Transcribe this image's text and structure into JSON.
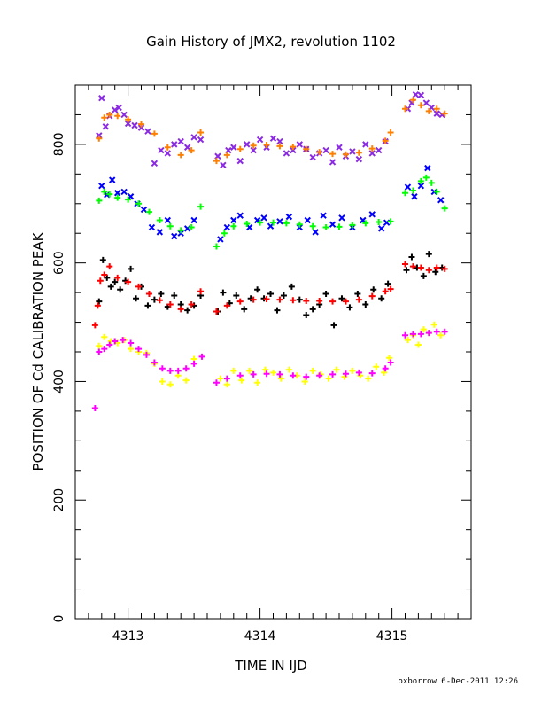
{
  "chart_data": {
    "type": "scatter",
    "title": "Gain History of JMX2, revolution 1102",
    "xlabel": "TIME IN IJD",
    "ylabel": "POSITION OF Cd CALIBRATION PEAK",
    "xlim": [
      4312.6,
      4315.6
    ],
    "ylim": [
      0,
      900
    ],
    "xticks": [
      4313,
      4314,
      4315
    ],
    "yticks": [
      0,
      200,
      400,
      600,
      800
    ],
    "grid": false,
    "series": [
      {
        "color": "#8a2be2",
        "marker": "x",
        "x": [
          4312.78,
          4312.8,
          4312.83,
          4312.86,
          4312.9,
          4312.93,
          4312.97,
          4313.0,
          4313.05,
          4313.1,
          4313.15,
          4313.2,
          4313.25,
          4313.3,
          4313.35,
          4313.4,
          4313.45,
          4313.5,
          4313.55,
          4313.68,
          4313.72,
          4313.76,
          4313.8,
          4313.85,
          4313.9,
          4313.95,
          4314.0,
          4314.05,
          4314.1,
          4314.15,
          4314.2,
          4314.25,
          4314.3,
          4314.35,
          4314.4,
          4314.45,
          4314.5,
          4314.55,
          4314.6,
          4314.65,
          4314.7,
          4314.75,
          4314.8,
          4314.85,
          4314.9,
          4314.95,
          4315.12,
          4315.15,
          4315.18,
          4315.22,
          4315.26,
          4315.3,
          4315.34,
          4315.38
        ],
        "y": [
          815,
          878,
          830,
          848,
          858,
          862,
          850,
          835,
          832,
          828,
          822,
          768,
          790,
          785,
          800,
          805,
          795,
          812,
          808,
          780,
          765,
          790,
          795,
          772,
          800,
          790,
          808,
          795,
          810,
          805,
          785,
          790,
          800,
          792,
          778,
          785,
          790,
          770,
          795,
          780,
          788,
          775,
          800,
          785,
          790,
          805,
          860,
          870,
          884,
          883,
          870,
          862,
          852,
          850
        ]
      },
      {
        "color": "#ff8000",
        "marker": "+",
        "x": [
          4312.78,
          4312.82,
          4312.86,
          4312.92,
          4313.0,
          4313.1,
          4313.2,
          4313.3,
          4313.4,
          4313.48,
          4313.55,
          4313.67,
          4313.75,
          4313.85,
          4313.95,
          4314.05,
          4314.15,
          4314.25,
          4314.35,
          4314.45,
          4314.55,
          4314.65,
          4314.75,
          4314.85,
          4314.95,
          4314.99,
          4315.1,
          4315.16,
          4315.22,
          4315.28,
          4315.34,
          4315.4
        ],
        "y": [
          810,
          845,
          850,
          848,
          842,
          834,
          818,
          795,
          782,
          790,
          820,
          772,
          782,
          792,
          798,
          799,
          797,
          796,
          792,
          787,
          784,
          783,
          786,
          793,
          806,
          820,
          860,
          875,
          866,
          856,
          860,
          852
        ]
      },
      {
        "color": "#0000ff",
        "marker": "x",
        "x": [
          4312.8,
          4312.84,
          4312.88,
          4312.92,
          4312.97,
          4313.02,
          4313.07,
          4313.12,
          4313.18,
          4313.24,
          4313.3,
          4313.35,
          4313.4,
          4313.45,
          4313.5,
          4313.7,
          4313.75,
          4313.8,
          4313.85,
          4313.92,
          4313.98,
          4314.03,
          4314.08,
          4314.15,
          4314.22,
          4314.3,
          4314.36,
          4314.42,
          4314.48,
          4314.55,
          4314.62,
          4314.7,
          4314.78,
          4314.85,
          4314.92,
          4314.96,
          4315.12,
          4315.17,
          4315.22,
          4315.27,
          4315.32,
          4315.37
        ],
        "y": [
          730,
          715,
          740,
          718,
          720,
          712,
          700,
          690,
          660,
          652,
          672,
          645,
          650,
          658,
          672,
          640,
          660,
          672,
          680,
          660,
          672,
          676,
          662,
          670,
          678,
          660,
          672,
          652,
          680,
          665,
          676,
          660,
          672,
          682,
          658,
          668,
          728,
          712,
          730,
          760,
          720,
          706
        ]
      },
      {
        "color": "#00ff00",
        "marker": "+",
        "x": [
          4312.78,
          4312.82,
          4312.86,
          4312.92,
          4313.0,
          4313.08,
          4313.16,
          4313.24,
          4313.32,
          4313.4,
          4313.48,
          4313.55,
          4313.67,
          4313.73,
          4313.8,
          4313.9,
          4314.0,
          4314.1,
          4314.2,
          4314.3,
          4314.4,
          4314.5,
          4314.6,
          4314.7,
          4314.8,
          4314.9,
          4314.99,
          4315.1,
          4315.16,
          4315.22,
          4315.26,
          4315.3,
          4315.34,
          4315.4
        ],
        "y": [
          705,
          720,
          716,
          710,
          707,
          700,
          686,
          672,
          662,
          655,
          660,
          695,
          628,
          650,
          662,
          666,
          668,
          668,
          667,
          665,
          662,
          660,
          661,
          664,
          667,
          669,
          670,
          718,
          722,
          738,
          744,
          735,
          720,
          692
        ]
      },
      {
        "color": "#000000",
        "marker": "+",
        "x": [
          4312.78,
          4312.81,
          4312.84,
          4312.87,
          4312.9,
          4312.94,
          4312.98,
          4313.02,
          4313.06,
          4313.1,
          4313.15,
          4313.2,
          4313.25,
          4313.3,
          4313.35,
          4313.4,
          4313.45,
          4313.5,
          4313.55,
          4313.68,
          4313.72,
          4313.77,
          4313.82,
          4313.88,
          4313.93,
          4313.98,
          4314.03,
          4314.08,
          4314.13,
          4314.18,
          4314.24,
          4314.3,
          4314.35,
          4314.4,
          4314.45,
          4314.5,
          4314.56,
          4314.62,
          4314.68,
          4314.74,
          4314.8,
          4314.86,
          4314.92,
          4314.97,
          4315.11,
          4315.15,
          4315.19,
          4315.24,
          4315.28,
          4315.33,
          4315.38
        ],
        "y": [
          535,
          605,
          575,
          560,
          568,
          555,
          570,
          590,
          540,
          560,
          528,
          538,
          548,
          526,
          545,
          530,
          520,
          528,
          545,
          518,
          550,
          532,
          545,
          522,
          540,
          555,
          540,
          548,
          520,
          545,
          560,
          538,
          512,
          522,
          530,
          548,
          495,
          540,
          525,
          548,
          530,
          555,
          540,
          565,
          588,
          610,
          592,
          578,
          615,
          585,
          592
        ]
      },
      {
        "color": "#ff0000",
        "marker": "+",
        "x": [
          4312.75,
          4312.77,
          4312.79,
          4312.82,
          4312.86,
          4312.92,
          4313.0,
          4313.08,
          4313.16,
          4313.24,
          4313.32,
          4313.4,
          4313.48,
          4313.55,
          4313.67,
          4313.75,
          4313.85,
          4313.95,
          4314.05,
          4314.15,
          4314.25,
          4314.35,
          4314.45,
          4314.55,
          4314.65,
          4314.75,
          4314.85,
          4314.95,
          4314.99,
          4315.1,
          4315.16,
          4315.22,
          4315.28,
          4315.34,
          4315.4
        ],
        "y": [
          495,
          528,
          570,
          580,
          594,
          575,
          568,
          560,
          548,
          537,
          530,
          522,
          530,
          552,
          518,
          528,
          535,
          538,
          539,
          538,
          537,
          536,
          536,
          535,
          535,
          538,
          544,
          552,
          556,
          598,
          594,
          592,
          588,
          592,
          590
        ]
      },
      {
        "color": "#ffff00",
        "marker": "+",
        "x": [
          4312.78,
          4312.82,
          4312.87,
          4312.92,
          4312.97,
          4313.02,
          4313.08,
          4313.14,
          4313.2,
          4313.26,
          4313.32,
          4313.38,
          4313.44,
          4313.5,
          4313.7,
          4313.75,
          4313.8,
          4313.86,
          4313.92,
          4313.98,
          4314.04,
          4314.1,
          4314.16,
          4314.22,
          4314.28,
          4314.34,
          4314.4,
          4314.46,
          4314.52,
          4314.58,
          4314.64,
          4314.7,
          4314.76,
          4314.82,
          4314.88,
          4314.94,
          4314.98,
          4315.12,
          4315.16,
          4315.2,
          4315.24,
          4315.28,
          4315.32,
          4315.37
        ],
        "y": [
          460,
          475,
          468,
          465,
          470,
          455,
          450,
          448,
          430,
          400,
          395,
          410,
          402,
          438,
          405,
          395,
          418,
          402,
          418,
          398,
          420,
          415,
          405,
          420,
          410,
          400,
          418,
          412,
          405,
          420,
          408,
          418,
          410,
          405,
          425,
          415,
          440,
          470,
          478,
          462,
          488,
          482,
          496,
          478
        ]
      },
      {
        "color": "#ff00ff",
        "marker": "+",
        "x": [
          4312.75,
          4312.78,
          4312.82,
          4312.86,
          4312.9,
          4312.96,
          4313.02,
          4313.08,
          4313.14,
          4313.2,
          4313.26,
          4313.32,
          4313.38,
          4313.44,
          4313.5,
          4313.56,
          4313.67,
          4313.75,
          4313.85,
          4313.95,
          4314.05,
          4314.15,
          4314.25,
          4314.35,
          4314.45,
          4314.55,
          4314.65,
          4314.75,
          4314.85,
          4314.95,
          4314.99,
          4315.1,
          4315.16,
          4315.22,
          4315.28,
          4315.34,
          4315.4
        ],
        "y": [
          355,
          450,
          455,
          462,
          468,
          470,
          465,
          455,
          445,
          432,
          422,
          418,
          418,
          422,
          430,
          442,
          398,
          405,
          410,
          412,
          413,
          412,
          410,
          408,
          410,
          412,
          413,
          415,
          414,
          422,
          432,
          478,
          480,
          480,
          482,
          484,
          484
        ]
      }
    ]
  },
  "footer": "oxborrow  6-Dec-2011 12:26"
}
